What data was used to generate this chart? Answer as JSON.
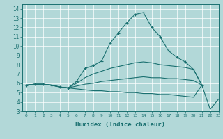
{
  "title": "",
  "xlabel": "Humidex (Indice chaleur)",
  "ylabel": "",
  "background_color": "#b2d8d8",
  "grid_color": "#ffffff",
  "line_color": "#1a7070",
  "xlim": [
    -0.5,
    23
  ],
  "ylim": [
    3,
    14.5
  ],
  "xticks": [
    0,
    1,
    2,
    3,
    4,
    5,
    6,
    7,
    8,
    9,
    10,
    11,
    12,
    13,
    14,
    15,
    16,
    17,
    18,
    19,
    20,
    21,
    22,
    23
  ],
  "yticks": [
    3,
    4,
    5,
    6,
    7,
    8,
    9,
    10,
    11,
    12,
    13,
    14
  ],
  "series": [
    {
      "x": [
        0,
        1,
        2,
        3,
        4,
        5,
        6,
        7,
        8,
        9,
        10,
        11,
        12,
        13,
        14,
        15,
        16,
        17,
        18,
        19,
        20,
        21
      ],
      "y": [
        5.8,
        5.9,
        5.9,
        5.8,
        5.6,
        5.5,
        6.2,
        7.6,
        7.9,
        8.4,
        10.3,
        11.4,
        12.5,
        13.4,
        13.6,
        12.0,
        11.0,
        9.5,
        8.8,
        8.3,
        7.5,
        5.8
      ],
      "marker": "+"
    },
    {
      "x": [
        0,
        1,
        2,
        3,
        4,
        5,
        6,
        7,
        8,
        9,
        10,
        11,
        12,
        13,
        14,
        15,
        16,
        17,
        18,
        19,
        20,
        21
      ],
      "y": [
        5.8,
        5.9,
        5.9,
        5.8,
        5.6,
        5.5,
        6.0,
        6.6,
        7.0,
        7.3,
        7.6,
        7.8,
        8.0,
        8.2,
        8.3,
        8.2,
        8.0,
        7.9,
        7.8,
        7.7,
        7.5,
        5.8
      ],
      "marker": null
    },
    {
      "x": [
        0,
        1,
        2,
        3,
        4,
        5,
        6,
        7,
        8,
        9,
        10,
        11,
        12,
        13,
        14,
        15,
        16,
        17,
        18,
        19,
        20,
        21
      ],
      "y": [
        5.8,
        5.9,
        5.9,
        5.8,
        5.6,
        5.5,
        5.7,
        5.9,
        6.0,
        6.2,
        6.3,
        6.4,
        6.5,
        6.6,
        6.7,
        6.6,
        6.6,
        6.5,
        6.5,
        6.4,
        6.3,
        5.8
      ],
      "marker": null
    },
    {
      "x": [
        0,
        1,
        2,
        3,
        4,
        5,
        6,
        7,
        8,
        9,
        10,
        11,
        12,
        13,
        14,
        15,
        16,
        17,
        18,
        19,
        20,
        21,
        22,
        23
      ],
      "y": [
        5.8,
        5.9,
        5.9,
        5.8,
        5.6,
        5.5,
        5.4,
        5.3,
        5.2,
        5.2,
        5.1,
        5.1,
        5.0,
        5.0,
        4.9,
        4.9,
        4.8,
        4.8,
        4.7,
        4.6,
        4.5,
        5.8,
        3.2,
        4.3
      ],
      "marker": null
    }
  ]
}
